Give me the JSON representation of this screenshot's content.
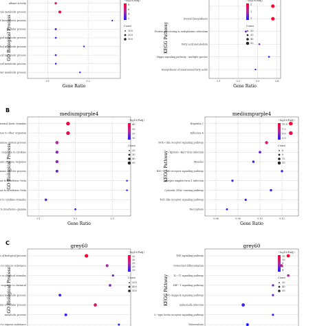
{
  "chart_data": [
    {
      "panel": "A",
      "title": "",
      "type": "scatter",
      "ylabel": "GO Biological Process",
      "xlabel": "Gene Ratio",
      "xticks": [
        "0.1",
        "0.2"
      ],
      "xlim": [
        0.05,
        0.28
      ],
      "legend_color_title": "−log10(Padj)",
      "legend_color_ticks": [
        "8",
        "6",
        "4",
        "2"
      ],
      "legend_size_title": "Count",
      "legend_size_ticks": [
        "100",
        "200",
        "300"
      ],
      "cmap": [
        2,
        8
      ],
      "count_range": [
        50,
        350
      ],
      "points": [
        {
          "label": "alkane activity",
          "x": 0.12,
          "c": 6,
          "n": 150
        },
        {
          "label": "small molecule metabolic process",
          "x": 0.13,
          "c": 7.5,
          "n": 200
        },
        {
          "label": "sterol biosynthetic process",
          "x": 0.26,
          "c": 2,
          "n": 60
        },
        {
          "label": "cellular process",
          "x": 0.12,
          "c": 3.5,
          "n": 120
        },
        {
          "label": "lipid metabolic process",
          "x": 0.12,
          "c": 3,
          "n": 100
        },
        {
          "label": "secondary alcohol metabolic process",
          "x": 0.19,
          "c": 2,
          "n": 60
        },
        {
          "label": "carboxylic acid metabolic process",
          "x": 0.12,
          "c": 3,
          "n": 100
        },
        {
          "label": "steroid metabolic process",
          "x": 0.12,
          "c": 2.5,
          "n": 80
        },
        {
          "label": "ester metabolic process",
          "x": 0.18,
          "c": 2,
          "n": 60
        }
      ]
    },
    {
      "panel": "A2",
      "title": "",
      "type": "scatter",
      "ylabel": "KEGG Pathway",
      "xlabel": "Gene Ratio",
      "xticks": [
        "0.1",
        "0.2",
        "0.3",
        "0.4"
      ],
      "xlim": [
        0.05,
        0.42
      ],
      "legend_color_title": "−log10(Padj)",
      "legend_color_ticks": [
        "3",
        "2",
        "1"
      ],
      "legend_size_title": "Count",
      "legend_size_ticks": [
        "20",
        "30",
        "40",
        "50"
      ],
      "cmap": [
        1,
        3
      ],
      "count_range": [
        10,
        60
      ],
      "points": [
        {
          "label": "",
          "x": 0.38,
          "c": 3,
          "n": 50
        },
        {
          "label": "Steroid biosynthesis",
          "x": 0.38,
          "c": 3,
          "n": 50
        },
        {
          "label": "Protein processing in endoplasmic reticulum",
          "x": 0.24,
          "c": 1.5,
          "n": 20
        },
        {
          "label": "Fatty acid metabolism",
          "x": 0.31,
          "c": 1.5,
          "n": 15
        },
        {
          "label": "Hippo signaling pathway - multiple species",
          "x": 0.36,
          "c": 1,
          "n": 15
        },
        {
          "label": "Biosynthesis of unsaturated fatty acids",
          "x": 0.29,
          "c": 1,
          "n": 12
        }
      ]
    },
    {
      "panel": "B",
      "title": "mediumpurple4",
      "type": "scatter",
      "ylabel": "GO Biological Process",
      "xlabel": "Gene Ratio",
      "xticks": [
        "0.1",
        "0.2",
        "0.3"
      ],
      "xlim": [
        0.07,
        0.35
      ],
      "legend_color_title": "−log10(Padj)",
      "legend_color_ticks": [
        "40",
        "30",
        "20",
        "10"
      ],
      "legend_size_title": "Count",
      "legend_size_ticks": [
        "20",
        "30",
        "40",
        "50"
      ],
      "cmap": [
        5,
        45
      ],
      "count_range": [
        10,
        60
      ],
      "points": [
        {
          "label": "response to external biotic stimulus",
          "x": 0.18,
          "c": 42,
          "n": 55
        },
        {
          "label": "defense response to other organism",
          "x": 0.18,
          "c": 40,
          "n": 55
        },
        {
          "label": "immune system process",
          "x": 0.15,
          "c": 25,
          "n": 45
        },
        {
          "label": "response to cytokine",
          "x": 0.15,
          "c": 20,
          "n": 40
        },
        {
          "label": "innate immune response",
          "x": 0.15,
          "c": 20,
          "n": 40
        },
        {
          "label": "immune effector process",
          "x": 0.15,
          "c": 15,
          "n": 35
        },
        {
          "label": "cellular response to interferon−beta",
          "x": 0.34,
          "c": 8,
          "n": 15
        },
        {
          "label": "response to interferon−beta",
          "x": 0.34,
          "c": 8,
          "n": 15
        },
        {
          "label": "cellular response to cytokine stimulus",
          "x": 0.12,
          "c": 15,
          "n": 30
        },
        {
          "label": "response to interferon−gamma",
          "x": 0.2,
          "c": 8,
          "n": 20
        }
      ]
    },
    {
      "panel": "B2",
      "title": "mediumpurple4",
      "type": "scatter",
      "ylabel": "KEGG Pathway",
      "xlabel": "Gene Ratio",
      "xticks": [
        "0.06",
        "0.08",
        "0.10",
        "0.12"
      ],
      "xlim": [
        0.05,
        0.135
      ],
      "legend_color_title": "−log10(Padj)",
      "legend_color_ticks": [
        "10.0",
        "7.5",
        "5.0",
        "2.5"
      ],
      "legend_size_title": "Count",
      "legend_size_ticks": [
        "6",
        "9",
        "12",
        "15"
      ],
      "cmap": [
        2,
        10
      ],
      "count_range": [
        5,
        16
      ],
      "points": [
        {
          "label": "Hepatitis C",
          "x": 0.128,
          "c": 10,
          "n": 15
        },
        {
          "label": "Influenza A",
          "x": 0.128,
          "c": 9,
          "n": 15
        },
        {
          "label": "NOD−like receptor signaling pathway",
          "x": 0.106,
          "c": 7,
          "n": 12
        },
        {
          "label": "Epstein−Barr virus infection",
          "x": 0.1,
          "c": 4,
          "n": 10
        },
        {
          "label": "Measles",
          "x": 0.094,
          "c": 3,
          "n": 9
        },
        {
          "label": "RIG−I−like receptor signaling pathway",
          "x": 0.12,
          "c": 3,
          "n": 9
        },
        {
          "label": "Herpes simplex virus 1 infection",
          "x": 0.075,
          "c": 2.5,
          "n": 8
        },
        {
          "label": "Cytosolic DNA−sensing pathway",
          "x": 0.11,
          "c": 3,
          "n": 9
        },
        {
          "label": "Toll−like receptor signaling pathway",
          "x": 0.087,
          "c": 2.5,
          "n": 8
        },
        {
          "label": "Necroptosis",
          "x": 0.07,
          "c": 2,
          "n": 7
        }
      ]
    },
    {
      "panel": "C",
      "title": "grey60",
      "type": "scatter",
      "ylabel": "GO Biological Process",
      "xlabel": "",
      "xticks": [],
      "xlim": [
        0.05,
        0.4
      ],
      "legend_color_title": "−log10(Padj)",
      "legend_color_ticks": [
        "35",
        "30",
        "25",
        "20",
        "15"
      ],
      "legend_size_title": "Count",
      "legend_size_ticks": [
        "300",
        "400",
        "500"
      ],
      "cmap": [
        15,
        35
      ],
      "count_range": [
        200,
        550
      ],
      "points": [
        {
          "label": "positive regulation of biological process",
          "x": 0.25,
          "c": 35,
          "n": 500
        },
        {
          "label": "response to organic substance",
          "x": 0.32,
          "c": 25,
          "n": 400
        },
        {
          "label": "response to chemical stimulus",
          "x": 0.34,
          "c": 20,
          "n": 300
        },
        {
          "label": "response to chemical",
          "x": 0.33,
          "c": 22,
          "n": 350
        },
        {
          "label": "organic substance metabolic process",
          "x": 0.16,
          "c": 16,
          "n": 350
        },
        {
          "label": "positive regulation of cellular process",
          "x": 0.28,
          "c": 30,
          "n": 450
        },
        {
          "label": "metabolic process",
          "x": 0.18,
          "c": 18,
          "n": 380
        },
        {
          "label": "cellular response to organic substance",
          "x": 0.36,
          "c": 15,
          "n": 280
        }
      ]
    },
    {
      "panel": "C2",
      "title": "grey60",
      "type": "scatter",
      "ylabel": "KEGG Pathway",
      "xlabel": "",
      "xticks": [],
      "xlim": [
        0.05,
        0.16
      ],
      "legend_color_title": "−log10(Padj)",
      "legend_color_ticks": [
        "12",
        "10",
        "8",
        "6",
        "4"
      ],
      "legend_size_title": "Count",
      "legend_size_ticks": [
        "30",
        "40",
        "50"
      ],
      "cmap": [
        4,
        12
      ],
      "count_range": [
        20,
        55
      ],
      "points": [
        {
          "label": "TNF signaling pathway",
          "x": 0.148,
          "c": 12,
          "n": 45
        },
        {
          "label": "Osteoclast differentiation",
          "x": 0.14,
          "c": 9,
          "n": 40
        },
        {
          "label": "IL−17 signaling pathway",
          "x": 0.148,
          "c": 8,
          "n": 35
        },
        {
          "label": "HIF−1 signaling pathway",
          "x": 0.13,
          "c": 6,
          "n": 30
        },
        {
          "label": "NF−kappa B signaling pathway",
          "x": 0.13,
          "c": 6,
          "n": 30
        },
        {
          "label": "Salmonella infection",
          "x": 0.095,
          "c": 5,
          "n": 45
        },
        {
          "label": "C−type lectin receptor signaling pathway",
          "x": 0.13,
          "c": 5,
          "n": 30
        },
        {
          "label": "Tuberculosis",
          "x": 0.1,
          "c": 4,
          "n": 40
        }
      ]
    }
  ]
}
